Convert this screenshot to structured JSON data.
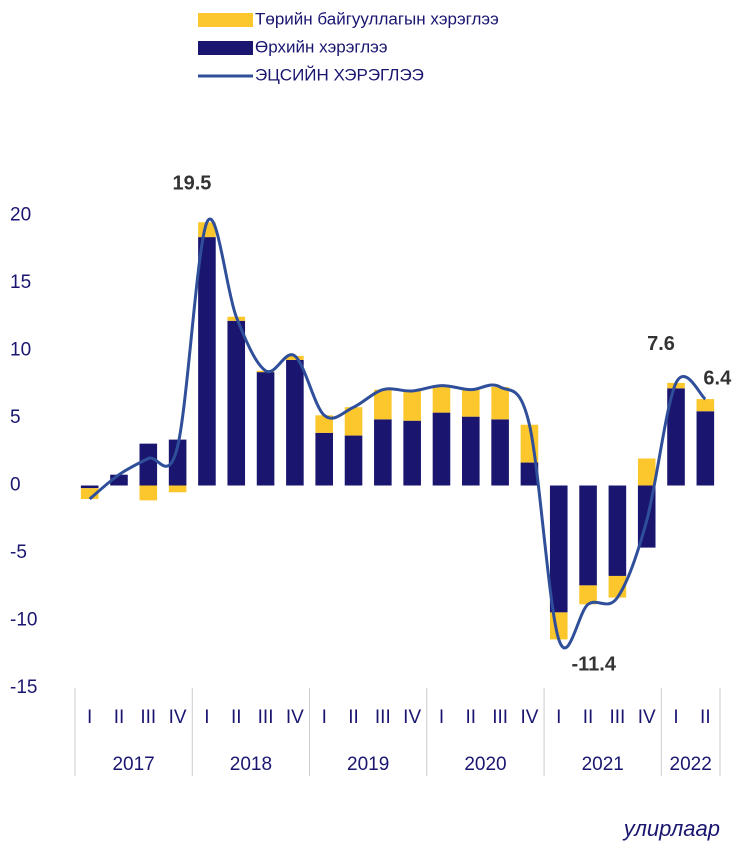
{
  "chart_data": {
    "type": "stacked-bar-line",
    "x_label": "улирлаар",
    "categories": [
      "I",
      "II",
      "III",
      "IV",
      "I",
      "II",
      "III",
      "IV",
      "I",
      "II",
      "III",
      "IV",
      "I",
      "II",
      "III",
      "IV",
      "I",
      "II",
      "III",
      "IV",
      "I",
      "II"
    ],
    "groups": [
      {
        "label": "2017",
        "count": 4
      },
      {
        "label": "2018",
        "count": 4
      },
      {
        "label": "2019",
        "count": 4
      },
      {
        "label": "2020",
        "count": 4
      },
      {
        "label": "2021",
        "count": 4
      },
      {
        "label": "2022",
        "count": 2
      }
    ],
    "series": [
      {
        "name": "Төрийн байгууллагын хэрэглээ",
        "color": "#fcc72c",
        "kind": "bar",
        "values": [
          -0.8,
          0,
          -1.1,
          -0.5,
          1.1,
          0.3,
          0.1,
          0.3,
          1.3,
          2.1,
          2.2,
          2.2,
          2.0,
          2.0,
          2.4,
          2.8,
          -2.0,
          -1.4,
          -1.6,
          2.0,
          0.4,
          0.9
        ]
      },
      {
        "name": "Өрхийн хэрэглээ",
        "color": "#1a1670",
        "kind": "bar",
        "values": [
          -0.2,
          0.8,
          3.1,
          3.4,
          18.4,
          12.2,
          8.4,
          9.3,
          3.9,
          3.7,
          4.9,
          4.8,
          5.4,
          5.1,
          4.9,
          1.7,
          -9.4,
          -7.4,
          -6.7,
          -4.6,
          7.2,
          5.5
        ]
      },
      {
        "name": "ЭЦСИЙН ХЭРЭГЛЭЭ",
        "color": "#2f4f9a",
        "kind": "line",
        "values": [
          -1.0,
          0.8,
          2.0,
          2.9,
          19.5,
          12.5,
          8.5,
          9.6,
          5.2,
          5.8,
          7.1,
          7.0,
          7.4,
          7.1,
          7.3,
          4.5,
          -11.4,
          -8.8,
          -8.3,
          -2.6,
          7.6,
          6.4
        ],
        "value_labels": [
          null,
          null,
          null,
          null,
          "19.5",
          null,
          null,
          null,
          null,
          null,
          null,
          null,
          null,
          null,
          null,
          null,
          "-11.4",
          null,
          null,
          null,
          "7.6",
          "6.4"
        ]
      }
    ],
    "ylim": [
      -15,
      22
    ],
    "yticks": [
      -15,
      -10,
      -5,
      0,
      5,
      10,
      15,
      20
    ]
  }
}
